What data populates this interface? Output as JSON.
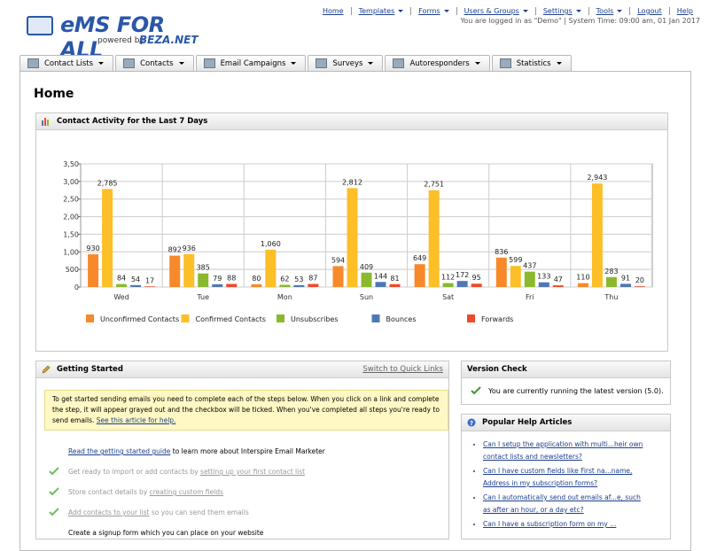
{
  "header": {
    "logo": "eMS FOR ALL",
    "powered_by": "powered by",
    "brand": "BEZA.NET",
    "nav": [
      {
        "label": "Home",
        "menu": false
      },
      {
        "label": "Templates",
        "menu": true
      },
      {
        "label": "Forms",
        "menu": true
      },
      {
        "label": "Users & Groups",
        "menu": true
      },
      {
        "label": "Settings",
        "menu": true
      },
      {
        "label": "Tools",
        "menu": true
      },
      {
        "label": "Logout",
        "menu": false
      },
      {
        "label": "Help",
        "menu": false
      }
    ],
    "status": "You are logged in as \"Demo\" | System Time: 09:00 am, 01 Jan 2017"
  },
  "tabs": [
    "Contact Lists",
    "Contacts",
    "Email Campaigns",
    "Surveys",
    "Autoresponders",
    "Statistics"
  ],
  "page_title": "Home",
  "chart_panel_title": "Contact Activity for the Last 7 Days",
  "chart_data": {
    "type": "bar",
    "categories": [
      "Wed",
      "Tue",
      "Mon",
      "Sun",
      "Sat",
      "Fri",
      "Thu"
    ],
    "series": [
      {
        "name": "Unconfirmed Contacts",
        "color": "#f7892b",
        "values": [
          930,
          892,
          80,
          594,
          649,
          836,
          110
        ]
      },
      {
        "name": "Confirmed Contacts",
        "color": "#fdbf27",
        "values": [
          2785,
          936,
          1060,
          2812,
          2751,
          599,
          2943
        ],
        "value_labels": [
          "2,785",
          "936",
          "1,060",
          "2,812",
          "2,751",
          "599",
          "2,943"
        ]
      },
      {
        "name": "Unsubscribes",
        "color": "#8ab92d",
        "values": [
          84,
          385,
          62,
          409,
          112,
          437,
          283
        ]
      },
      {
        "name": "Bounces",
        "color": "#4f77b5",
        "values": [
          54,
          79,
          53,
          144,
          172,
          133,
          91
        ]
      },
      {
        "name": "Forwards",
        "color": "#ee4a2a",
        "values": [
          17,
          88,
          87,
          81,
          95,
          47,
          20
        ]
      }
    ],
    "ylim": [
      0,
      3500
    ],
    "yticks": [
      0,
      500,
      {
        "value": 1000,
        "label": "1,00"
      },
      {
        "value": 1500,
        "label": "1,50"
      },
      {
        "value": 2000,
        "label": "2,00"
      },
      {
        "value": 2500,
        "label": "2,50"
      },
      {
        "value": 3000,
        "label": "3,00"
      },
      {
        "value": 3500,
        "label": "3,50"
      }
    ],
    "grid": true
  },
  "getting_started": {
    "title": "Getting Started",
    "switch_link": "Switch to Quick Links",
    "notice": "To get started sending emails you need to complete each of the steps below. When you click on a link and complete the step, it will appear grayed out and the checkbox will be ticked. When you've completed all steps you're ready to send emails. ",
    "notice_link": "See this article for help.",
    "steps": [
      {
        "done": false,
        "link": "Read the getting started guide",
        "after": " to learn more about Interspire Email Marketer"
      },
      {
        "done": true,
        "before": "Get ready to import or add contacts by ",
        "link": "setting up your first contact list"
      },
      {
        "done": true,
        "before": "Store contact details by ",
        "link": "creating custom fields"
      },
      {
        "done": true,
        "link": "Add contacts to your list",
        "after": " so you can send them emails"
      },
      {
        "done": false,
        "before": "Create a signup form which you can place on your website"
      }
    ]
  },
  "version_check": {
    "title": "Version Check",
    "message": "You are currently running the latest version (5.0)."
  },
  "help_articles": {
    "title": "Popular Help Articles",
    "items": [
      "Can I setup the application with multi...heir own contact lists and newsletters?",
      "Can I have custom fields like First na...name, Address in my subscription forms?",
      "Can I automatically send out emails af...e, such as after an hour, or a day etc?",
      "Can I have a subscription form on my ..."
    ]
  }
}
